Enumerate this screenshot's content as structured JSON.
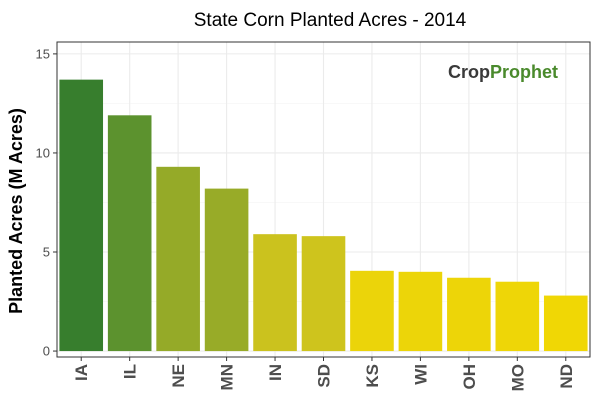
{
  "chart_data": {
    "type": "bar",
    "title": "State Corn Planted Acres - 2014",
    "xlabel": "",
    "ylabel": "Planted Acres (M Acres)",
    "categories": [
      "IA",
      "IL",
      "NE",
      "MN",
      "IN",
      "SD",
      "KS",
      "WI",
      "OH",
      "MO",
      "ND"
    ],
    "values": [
      13.7,
      11.9,
      9.3,
      8.2,
      5.9,
      5.8,
      4.05,
      4.0,
      3.7,
      3.5,
      2.8
    ],
    "bar_colors": [
      "#377e2d",
      "#5c922e",
      "#95aa28",
      "#98ab28",
      "#cbc21e",
      "#cec41d",
      "#ebd40a",
      "#ecd509",
      "#edd508",
      "#eed607",
      "#f0d705"
    ],
    "ylim": [
      -0.3,
      15.6
    ],
    "yticks": [
      0,
      5,
      10,
      15
    ],
    "grid": true,
    "legend": "none"
  },
  "logo": {
    "part1": "Crop",
    "part2": "Prophet",
    "color1": "#3a3a3a",
    "color2": "#4a8a2c"
  },
  "style": {
    "panel_bg": "#ffffff",
    "grid_major": "#ebebeb",
    "grid_minor": "#f5f5f5",
    "border": "#333333"
  }
}
